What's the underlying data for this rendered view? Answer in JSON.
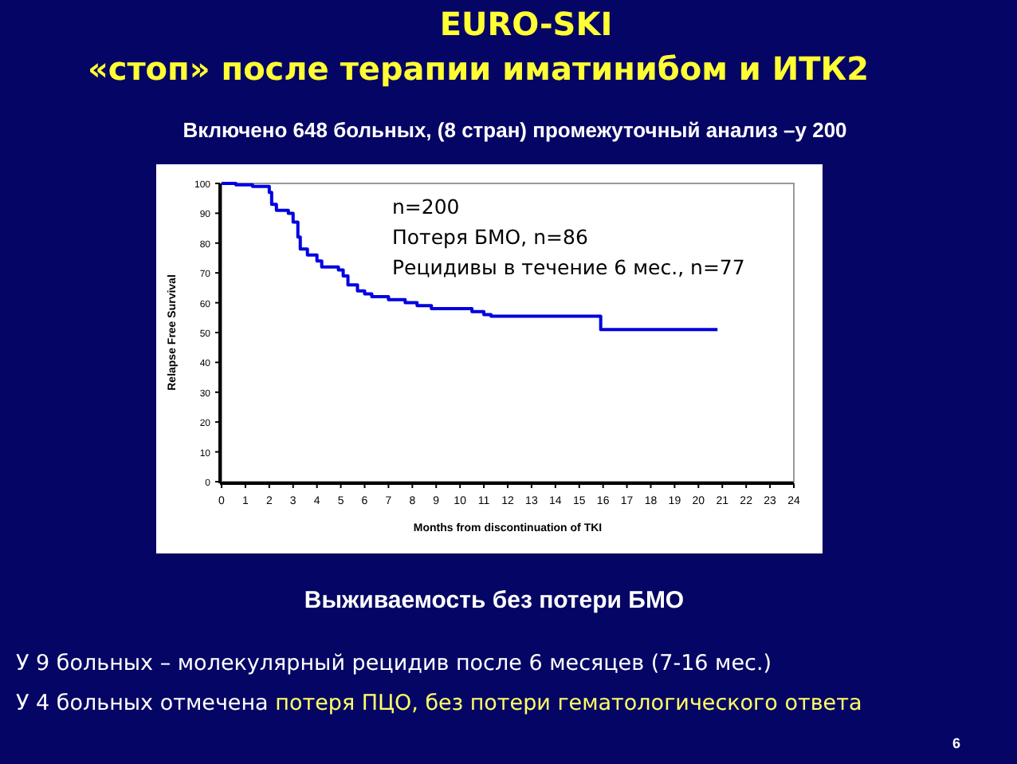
{
  "chart_data": {
    "type": "step",
    "title": "EURO-SKI",
    "subtitle": "«стоп» после терапии иматинибом и ИТК2",
    "xlabel": "Months from discontinuation of TKI",
    "ylabel": "Relapse Free Survival",
    "x": [
      0,
      0.6,
      1.3,
      2.0,
      2.1,
      2.3,
      2.8,
      3.0,
      3.2,
      3.3,
      3.6,
      4.0,
      4.2,
      4.9,
      5.1,
      5.3,
      5.7,
      6.0,
      6.3,
      7.0,
      7.7,
      8.2,
      8.8,
      10.5,
      11.0,
      11.3,
      15.9,
      20.8
    ],
    "series": [
      {
        "color": "#0000e0",
        "values": [
          100,
          99.5,
          99,
          97,
          93,
          91,
          90,
          87,
          82,
          78,
          76,
          74,
          72,
          71,
          69,
          66,
          64,
          63,
          62,
          61,
          60,
          59,
          58,
          57,
          56,
          55.5,
          51,
          51
        ]
      }
    ],
    "xlim": [
      0,
      24
    ],
    "xticks": [
      0,
      1,
      2,
      3,
      4,
      5,
      6,
      7,
      8,
      9,
      10,
      11,
      12,
      13,
      14,
      15,
      16,
      17,
      18,
      19,
      20,
      21,
      22,
      23,
      24
    ],
    "ylim": [
      0,
      100
    ],
    "yticks": [
      0,
      10,
      20,
      30,
      40,
      50,
      60,
      70,
      80,
      90,
      100
    ],
    "grid": false,
    "marker": "none",
    "line_style": "solid",
    "annotations": [
      "Включено 648 больных, (8 стран) промежуточный анализ –у 200",
      "n=200",
      "Потеря БМО, n=86",
      "Рецидивы в течение 6 мес., n=77",
      "Выживаемость без потери БМО",
      "У 9 больных – молекулярный рецидив после 6 месяцев (7-16 мес.)",
      "У 4 больных отмечена",
      "потеря ПЦО, без потери гематологического ответа",
      "6"
    ]
  }
}
